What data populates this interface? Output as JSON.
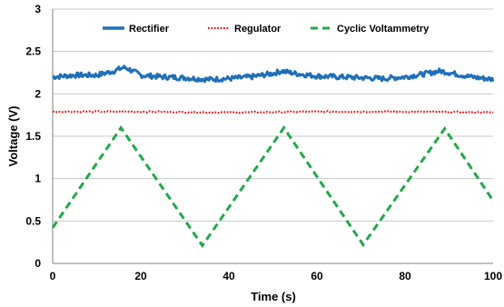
{
  "chart_data": {
    "type": "line",
    "xlabel": "Time (s)",
    "ylabel": "Voltage (V)",
    "xlim": [
      0,
      100
    ],
    "ylim": [
      0,
      3
    ],
    "xticks": [
      0,
      20,
      40,
      60,
      80,
      100
    ],
    "yticks": [
      0,
      0.5,
      1,
      1.5,
      2,
      2.5,
      3
    ],
    "grid": "horizontal",
    "legend_position": "top",
    "series": [
      {
        "name": "Rectifier",
        "color": "#1f6fb8",
        "style": "solid-noisy",
        "x": [
          0,
          5,
          10,
          14,
          16,
          17,
          20,
          25,
          30,
          35,
          40,
          45,
          50,
          52,
          55,
          60,
          65,
          70,
          75,
          80,
          85,
          88,
          90,
          95,
          100
        ],
        "y": [
          2.2,
          2.22,
          2.22,
          2.27,
          2.31,
          2.3,
          2.22,
          2.2,
          2.19,
          2.17,
          2.18,
          2.2,
          2.24,
          2.27,
          2.24,
          2.21,
          2.2,
          2.19,
          2.18,
          2.2,
          2.24,
          2.27,
          2.25,
          2.2,
          2.17
        ]
      },
      {
        "name": "Regulator",
        "color": "#e02020",
        "style": "dotted",
        "x": [
          0,
          20,
          40,
          60,
          80,
          100
        ],
        "y": [
          1.79,
          1.79,
          1.78,
          1.79,
          1.79,
          1.78
        ]
      },
      {
        "name": "Cyclic Voltammetry",
        "color": "#22a84a",
        "style": "dashed",
        "x": [
          0,
          15.5,
          34,
          52.5,
          70.5,
          89,
          100
        ],
        "y": [
          0.42,
          1.6,
          0.21,
          1.6,
          0.22,
          1.59,
          0.74
        ]
      }
    ]
  }
}
